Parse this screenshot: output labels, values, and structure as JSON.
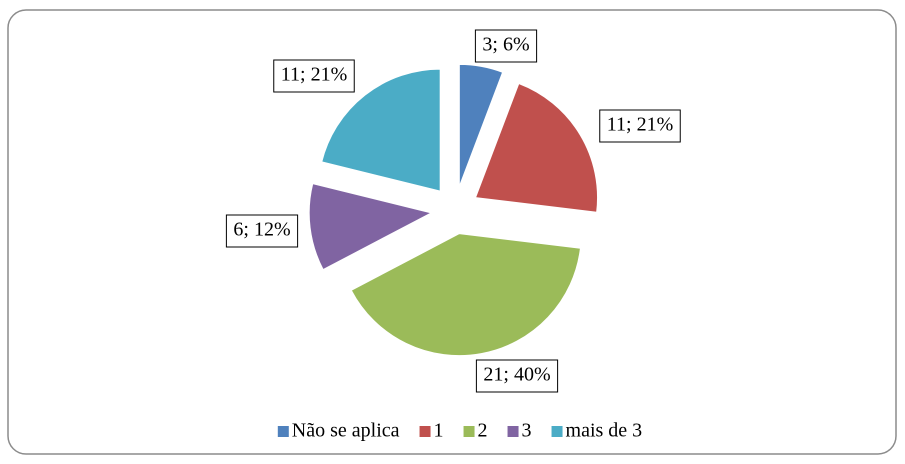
{
  "chart_data": {
    "type": "pie",
    "categories": [
      "Não se aplica",
      "1",
      "2",
      "3",
      "mais de 3"
    ],
    "values": [
      3,
      11,
      21,
      6,
      11
    ],
    "value_labels": [
      "3; 6%",
      "11; 21%",
      "21; 40%",
      "6; 12%",
      "11; 21%"
    ],
    "colors": [
      "#4f81bd",
      "#c0504d",
      "#9bbb59",
      "#8064a2",
      "#4bacc6"
    ],
    "legend": "bottom"
  }
}
